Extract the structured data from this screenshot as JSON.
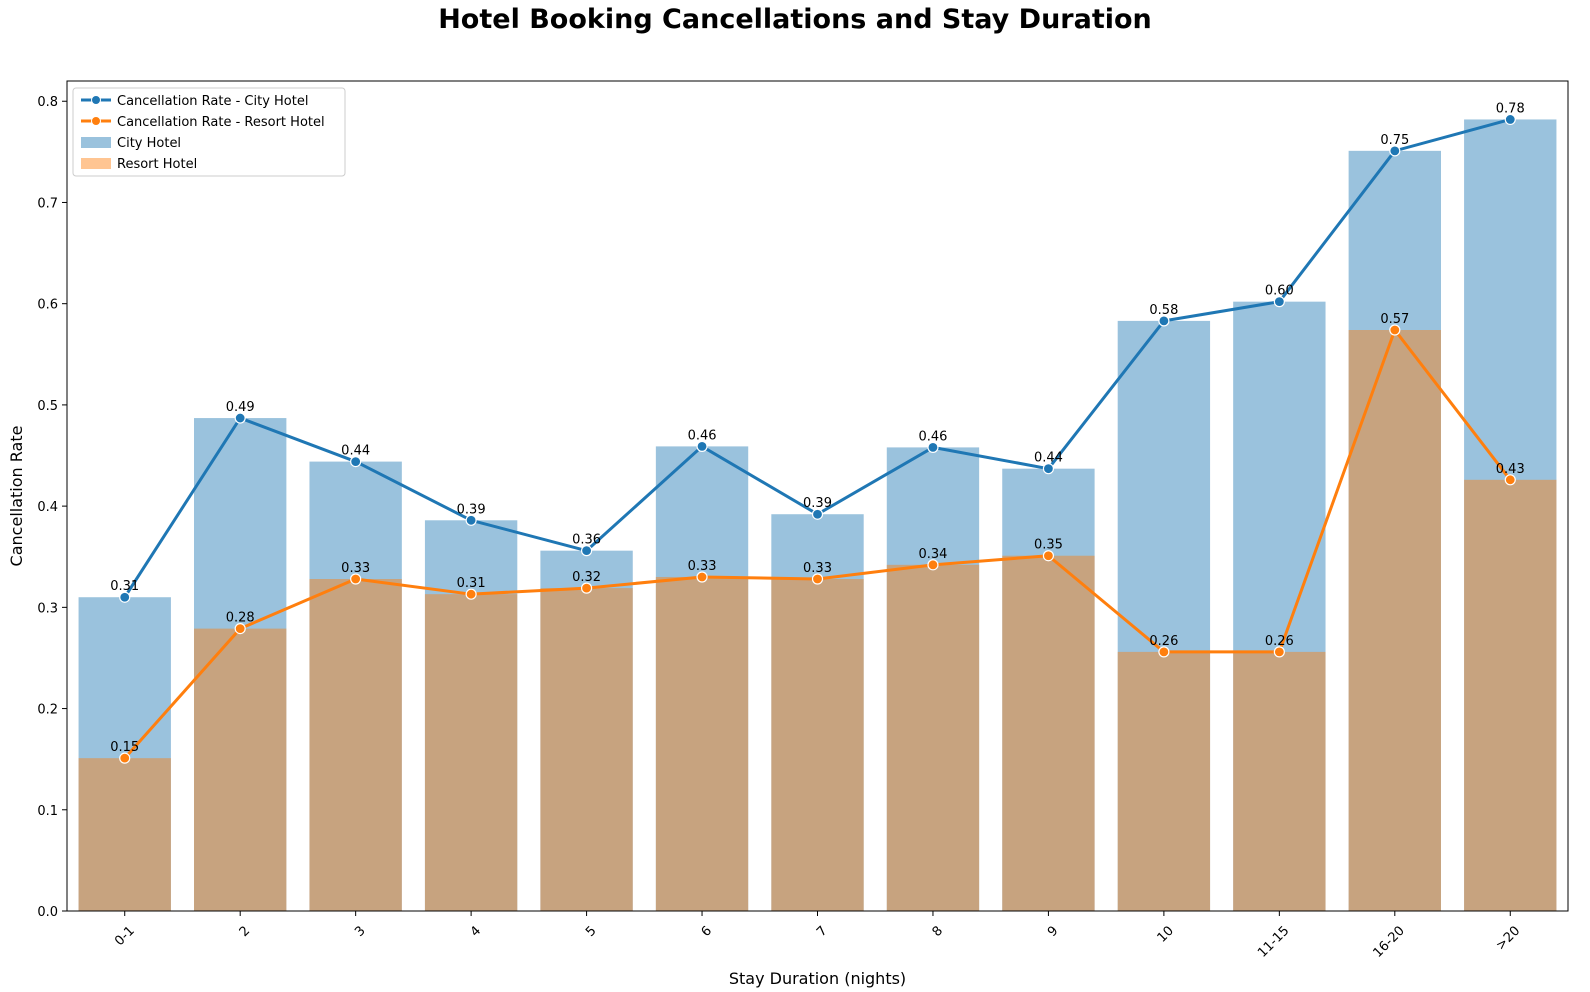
{
  "chart_data": {
    "type": "bar",
    "title": "Hotel Booking Cancellations and Stay Duration",
    "xlabel": "Stay Duration (nights)",
    "ylabel": "Cancellation Rate",
    "ylim": [
      0,
      0.82
    ],
    "yticks": [
      0.0,
      0.1,
      0.2,
      0.3,
      0.4,
      0.5,
      0.6,
      0.7,
      0.8
    ],
    "ytick_labels": [
      "0.0",
      "0.1",
      "0.2",
      "0.3",
      "0.4",
      "0.5",
      "0.6",
      "0.7",
      "0.8"
    ],
    "grid": false,
    "legend_position": "top-left",
    "categories": [
      "0-1",
      "2",
      "3",
      "4",
      "5",
      "6",
      "7",
      "8",
      "9",
      "10",
      "11-15",
      "16-20",
      ">20"
    ],
    "series": [
      {
        "name": "City Hotel",
        "type": "bar",
        "color": "#1f77b4",
        "opacity": 0.45,
        "values": [
          0.31,
          0.487,
          0.444,
          0.386,
          0.356,
          0.459,
          0.392,
          0.458,
          0.437,
          0.583,
          0.602,
          0.751,
          0.782
        ]
      },
      {
        "name": "Resort Hotel",
        "type": "bar",
        "color": "#ff7f0e",
        "opacity": 0.45,
        "values": [
          0.151,
          0.279,
          0.328,
          0.313,
          0.319,
          0.33,
          0.328,
          0.342,
          0.351,
          0.256,
          0.256,
          0.574,
          0.426
        ]
      },
      {
        "name": "Cancellation Rate - City Hotel",
        "type": "line",
        "color": "#1f77b4",
        "values": [
          0.31,
          0.487,
          0.444,
          0.386,
          0.356,
          0.459,
          0.392,
          0.458,
          0.437,
          0.583,
          0.602,
          0.751,
          0.782
        ],
        "labels": [
          "0.31",
          "0.49",
          "0.44",
          "0.39",
          "0.36",
          "0.46",
          "0.39",
          "0.46",
          "0.44",
          "0.58",
          "0.60",
          "0.75",
          "0.78"
        ]
      },
      {
        "name": "Cancellation Rate - Resort Hotel",
        "type": "line",
        "color": "#ff7f0e",
        "values": [
          0.151,
          0.279,
          0.328,
          0.313,
          0.319,
          0.33,
          0.328,
          0.342,
          0.351,
          0.256,
          0.256,
          0.574,
          0.426
        ],
        "labels": [
          "0.15",
          "0.28",
          "0.33",
          "0.31",
          "0.32",
          "0.33",
          "0.33",
          "0.34",
          "0.35",
          "0.26",
          "0.26",
          "0.57",
          "0.43"
        ]
      }
    ],
    "legend_entries": [
      "Cancellation Rate - City Hotel",
      "Cancellation Rate - Resort Hotel",
      "City Hotel",
      "Resort Hotel"
    ]
  }
}
